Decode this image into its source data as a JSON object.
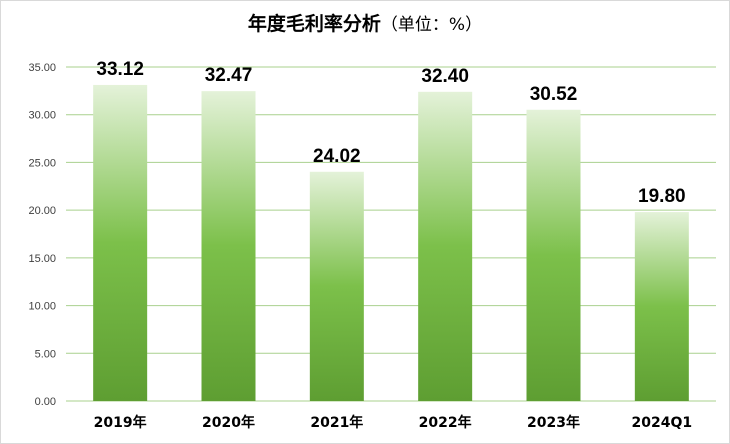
{
  "chart_data": {
    "type": "bar",
    "title": "年度毛利率分析",
    "title_unit": "（单位：%）",
    "categories": [
      "2019年",
      "2020年",
      "2021年",
      "2022年",
      "2023年",
      "2024Q1"
    ],
    "values": [
      33.12,
      32.47,
      24.02,
      32.4,
      30.52,
      19.8
    ],
    "data_labels": [
      "33.12",
      "32.47",
      "24.02",
      "32.40",
      "30.52",
      "19.80"
    ],
    "y_ticks": [
      "0.00",
      "5.00",
      "10.00",
      "15.00",
      "20.00",
      "25.00",
      "30.00",
      "35.00"
    ],
    "ylim": [
      0,
      35
    ],
    "xlabel": "",
    "ylabel": "",
    "grid": true,
    "legend": "none",
    "colors": {
      "bar_top": "#e4f2d9",
      "bar_mid": "#7cc04a",
      "bar_bottom": "#5e9e32",
      "grid": "#a9d18e"
    }
  }
}
